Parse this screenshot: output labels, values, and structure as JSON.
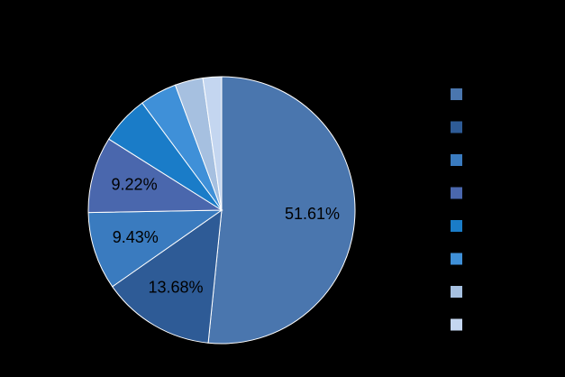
{
  "chart_data": {
    "type": "pie",
    "values": [
      51.61,
      13.68,
      9.43,
      9.22,
      5.9,
      4.5,
      3.4,
      2.26
    ],
    "value_labels": [
      "51.61%",
      "13.68%",
      "9.43%",
      "9.22%",
      null,
      null,
      null,
      null
    ],
    "colors": [
      "#4a76ae",
      "#2e5b96",
      "#3a7bbf",
      "#4a67ad",
      "#1a7cc8",
      "#3f90d8",
      "#a6c0e0",
      "#c4d6f0"
    ],
    "legend": "right"
  }
}
